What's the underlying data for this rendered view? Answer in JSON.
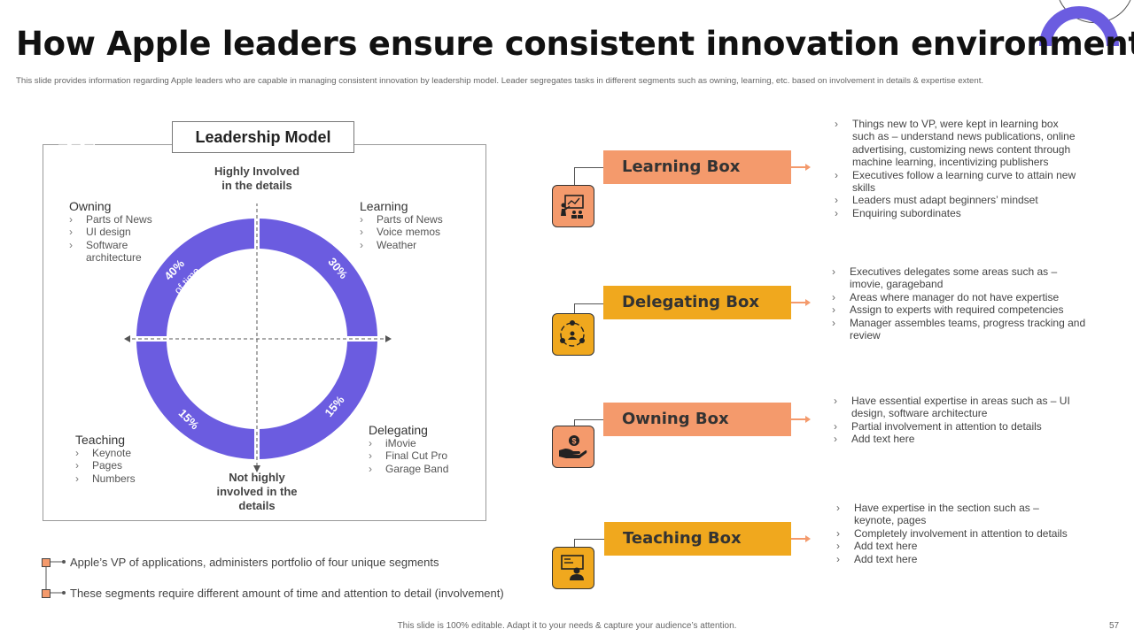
{
  "title": "How Apple leaders ensure consistent innovation environment",
  "subtitle": "This slide provides information regarding Apple leaders who are capable in managing consistent innovation by leadership model. Leader segregates tasks in different segments such as owning, learning, etc. based on involvement in details & expertise extent.",
  "model": {
    "title": "Leadership Model",
    "axis_top": "Highly Involved in the details",
    "axis_bottom": "Not highly involved in the details",
    "quadrants": {
      "owning": {
        "title": "Owning",
        "items": [
          "Parts of News",
          "UI design",
          "Software architecture"
        ]
      },
      "learning": {
        "title": "Learning",
        "items": [
          "Parts of News",
          "Voice memos",
          "Weather"
        ]
      },
      "teaching": {
        "title": "Teaching",
        "items": [
          "Keynote",
          "Pages",
          "Numbers"
        ]
      },
      "delegating": {
        "title": "Delegating",
        "items": [
          "iMovie",
          "Final Cut Pro",
          "Garage Band"
        ]
      }
    },
    "segments": {
      "owning_pct": "40%",
      "owning_note": "of time",
      "learning_pct": "30%",
      "delegating_pct": "15%",
      "teaching_pct": "15%"
    },
    "ring_color": "#6b5ce0"
  },
  "notes": [
    "Apple’s VP of applications, administers portfolio of four unique segments",
    "These segments require different amount of time and attention to detail (involvement)"
  ],
  "boxes": [
    {
      "label": "Learning Box",
      "icon": "presentation-icon",
      "color": "#f49a6c",
      "bullets": [
        "Things new to VP, were kept in learning box such as – understand news publications, online advertising, customizing news content through machine learning, incentivizing publishers",
        "Executives follow a learning curve to attain new skills",
        "Leaders must adapt beginners’ mindset",
        "Enquiring subordinates"
      ]
    },
    {
      "label": "Delegating Box",
      "icon": "team-network-icon",
      "color": "#f0a81e",
      "bullets": [
        "Executives delegates some areas such as – imovie, garageband",
        "Areas where manager do not have expertise",
        "Assign to experts with required  competencies",
        "Manager assembles teams, progress tracking and review"
      ]
    },
    {
      "label": "Owning Box",
      "icon": "hand-money-icon",
      "color": "#f49a6c",
      "bullets": [
        "Have essential expertise in areas such as – UI design, software architecture",
        "Partial involvement in attention to details",
        "Add text here"
      ]
    },
    {
      "label": "Teaching Box",
      "icon": "teacher-board-icon",
      "color": "#f0a81e",
      "bullets": [
        "Have expertise in the section such as – keynote, pages",
        "Completely involvement in attention to details",
        "Add text here",
        "Add text here"
      ]
    }
  ],
  "footer": "This slide is 100% editable. Adapt it to your needs & capture your audience’s attention.",
  "page_number": "57"
}
